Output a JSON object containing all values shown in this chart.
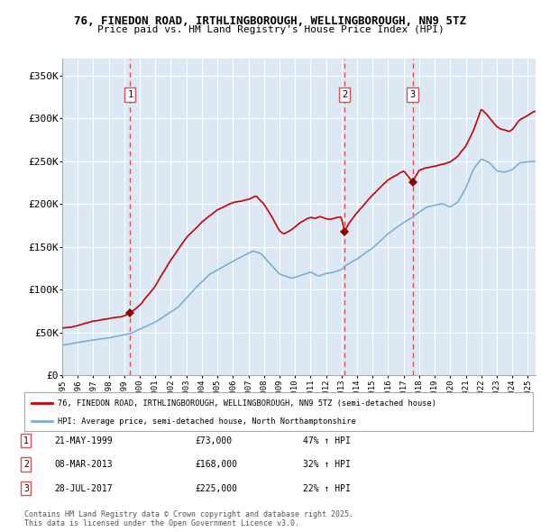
{
  "title_line1": "76, FINEDON ROAD, IRTHLINGBOROUGH, WELLINGBOROUGH, NN9 5TZ",
  "title_line2": "Price paid vs. HM Land Registry's House Price Index (HPI)",
  "bg_color": "#dce9f5",
  "grid_color": "#ffffff",
  "red_line_color": "#cc0000",
  "blue_line_color": "#7ab0d4",
  "purchase_marker_color": "#8b0000",
  "dashed_line_color": "#e05050",
  "yticks": [
    0,
    50000,
    100000,
    150000,
    200000,
    250000,
    300000,
    350000
  ],
  "ytick_labels": [
    "£0",
    "£50K",
    "£100K",
    "£150K",
    "£200K",
    "£250K",
    "£300K",
    "£350K"
  ],
  "ylim": [
    0,
    370000
  ],
  "xlim_start": 1995.0,
  "xlim_end": 2025.5,
  "xticks": [
    1995,
    1996,
    1997,
    1998,
    1999,
    2000,
    2001,
    2002,
    2003,
    2004,
    2005,
    2006,
    2007,
    2008,
    2009,
    2010,
    2011,
    2012,
    2013,
    2014,
    2015,
    2016,
    2017,
    2018,
    2019,
    2020,
    2021,
    2022,
    2023,
    2024,
    2025
  ],
  "purchase_dates": [
    1999.38,
    2013.18,
    2017.57
  ],
  "purchase_prices": [
    73000,
    168000,
    225000
  ],
  "purchase_labels": [
    "1",
    "2",
    "3"
  ],
  "legend_label_red": "76, FINEDON ROAD, IRTHLINGBOROUGH, WELLINGBOROUGH, NN9 5TZ (semi-detached house)",
  "legend_label_blue": "HPI: Average price, semi-detached house, North Northamptonshire",
  "table_entries": [
    {
      "num": "1",
      "date": "21-MAY-1999",
      "price": "£73,000",
      "change": "47% ↑ HPI"
    },
    {
      "num": "2",
      "date": "08-MAR-2013",
      "price": "£168,000",
      "change": "32% ↑ HPI"
    },
    {
      "num": "3",
      "date": "28-JUL-2017",
      "price": "£225,000",
      "change": "22% ↑ HPI"
    }
  ],
  "footnote": "Contains HM Land Registry data © Crown copyright and database right 2025.\nThis data is licensed under the Open Government Licence v3.0."
}
